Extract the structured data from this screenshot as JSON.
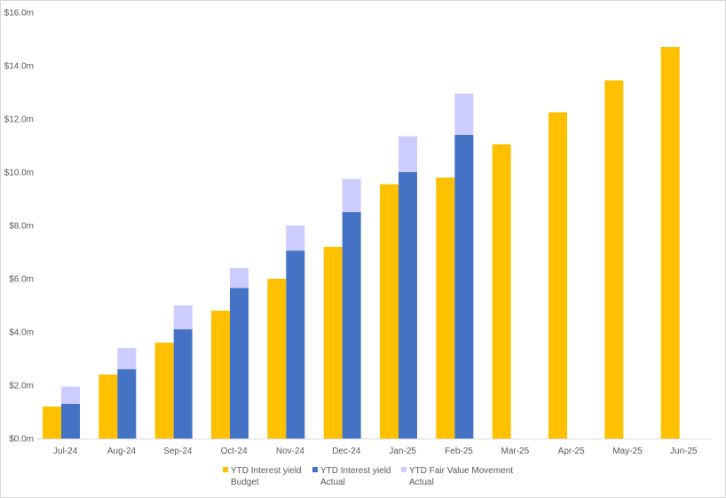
{
  "chart_data": {
    "type": "bar",
    "stacked_series": "actual",
    "categories": [
      "Jul-24",
      "Aug-24",
      "Sep-24",
      "Oct-24",
      "Nov-24",
      "Dec-24",
      "Jan-25",
      "Feb-25",
      "Mar-25",
      "Apr-25",
      "May-25",
      "Jun-25"
    ],
    "series": [
      {
        "name": "YTD Interest yield Budget",
        "legend_lines": [
          "YTD Interest yield",
          "Budget"
        ],
        "color": "#FFC000",
        "values": [
          1.2,
          2.4,
          3.6,
          4.8,
          6.0,
          7.2,
          9.55,
          9.8,
          11.05,
          12.25,
          13.45,
          14.7
        ]
      },
      {
        "name": "YTD Interest yield Actual",
        "legend_lines": [
          "YTD Interest yield",
          "Actual"
        ],
        "color": "#4472C4",
        "values": [
          1.3,
          2.6,
          4.1,
          5.65,
          7.05,
          8.5,
          10.0,
          11.4,
          null,
          null,
          null,
          null
        ]
      },
      {
        "name": "YTD Fair Value Movement Actual",
        "legend_lines": [
          "YTD Fair Value Movement",
          "Actual"
        ],
        "color": "#CCCCFF",
        "values": [
          0.65,
          0.8,
          0.9,
          0.75,
          0.95,
          1.25,
          1.35,
          1.55,
          null,
          null,
          null,
          null
        ]
      }
    ],
    "y_ticks": [
      "$0.0m",
      "$2.0m",
      "$4.0m",
      "$6.0m",
      "$8.0m",
      "$10.0m",
      "$12.0m",
      "$14.0m",
      "$16.0m"
    ],
    "ylim": [
      0,
      16
    ],
    "ytick_step": 2,
    "grid": false,
    "legend_position": "bottom",
    "title": "",
    "xlabel": "",
    "ylabel": ""
  }
}
